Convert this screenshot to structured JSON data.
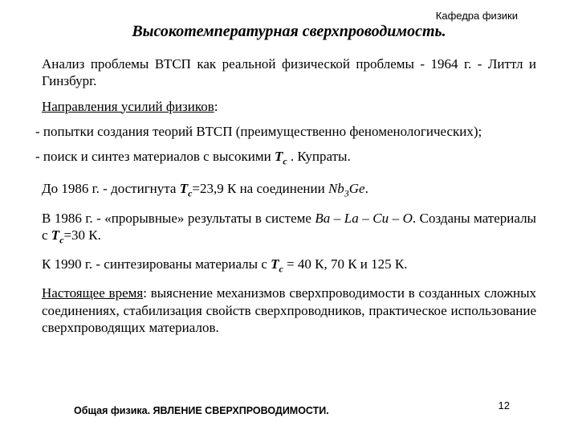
{
  "colors": {
    "bg": "#ffffff",
    "text": "#000000"
  },
  "dept": "Кафедра физики",
  "title": "Высокотемпературная сверхпроводимость.",
  "para_intro_a": "Анализ проблемы ВТСП как реальной физической проблемы - 1964 г. -  Литтл и Гинзбург.",
  "heading_dirs_a": "Направления усилий физиков",
  "heading_dirs_b": ":",
  "bullet1_a": "- попытки создания теорий ВТСП (преимущественно феноменологических);",
  "bullet2_a": "- поиск и синтез материалов с высокими  ",
  "bullet2_tc_T": "T",
  "bullet2_tc_c": "c",
  "bullet2_b": " . Купраты.",
  "p1986a_a": "До 1986 г. - достигнута ",
  "p1986a_T": "T",
  "p1986a_c": "c",
  "p1986a_b": "=23,9 К на соединении ",
  "p1986a_nb": "Nb",
  "p1986a_3": "3",
  "p1986a_ge": "Ge",
  "p1986a_dot": ".",
  "p1986b_a": "В 1986 г. - «прорывные» результаты в системе ",
  "p1986b_sys": "Ba – La – Cu – O",
  "p1986b_b": ". Созданы материалы с ",
  "p1986b_T": "T",
  "p1986b_c": "c",
  "p1986b_d": "=30 К.",
  "p1990_a": "К 1990 г. - синтезированы материалы с ",
  "p1990_T": "T",
  "p1990_c": "c",
  "p1990_b": " = 40 К, 70 К и 125 К.",
  "pnow_a": "Настоящее время",
  "pnow_b": ": выяснение механизмов сверхпроводимости в созданных сложных соединениях, стабилизация свойств сверхпроводников, практическое использование сверхпроводящих материалов.",
  "footer": "Общая физика. ЯВЛЕНИЕ СВЕРХПРОВОДИМОСТИ.",
  "page": "12"
}
